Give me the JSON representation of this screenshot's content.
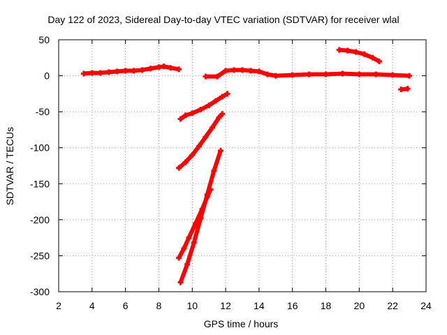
{
  "chart_data": {
    "type": "scatter",
    "title": "Day 122 of 2023, Sidereal Day-to-day VTEC variation (SDTVAR) for receiver wlal",
    "xlabel": "GPS time / hours",
    "ylabel": "SDTVAR / TECUs",
    "xlim": [
      2,
      24
    ],
    "ylim": [
      -300,
      50
    ],
    "xticks": [
      2,
      4,
      6,
      8,
      10,
      12,
      14,
      16,
      18,
      20,
      22,
      24
    ],
    "yticks": [
      -300,
      -250,
      -200,
      -150,
      -100,
      -50,
      0,
      50
    ],
    "grid": true,
    "legend": "none",
    "color": "#ff0000",
    "series": [
      {
        "x": [
          3.5,
          4.0,
          4.5,
          5.0,
          5.5,
          6.0,
          6.5,
          7.0,
          7.5,
          8.0,
          8.3,
          8.7,
          9.2
        ],
        "y": [
          3,
          4,
          4,
          5,
          6,
          7,
          7,
          8,
          10,
          12,
          13,
          11,
          9
        ]
      },
      {
        "x": [
          9.3,
          9.6,
          10.0,
          10.5,
          11.0,
          11.4,
          11.8,
          12.1
        ],
        "y": [
          -60,
          -55,
          -52,
          -47,
          -41,
          -35,
          -29,
          -25
        ]
      },
      {
        "x": [
          9.2,
          9.6,
          10.0,
          10.4,
          10.8,
          11.2,
          11.6,
          11.8
        ],
        "y": [
          -128,
          -120,
          -110,
          -98,
          -85,
          -72,
          -58,
          -53
        ]
      },
      {
        "x": [
          9.2,
          9.5,
          9.8,
          10.2,
          10.6,
          10.9,
          11.1
        ],
        "y": [
          -253,
          -240,
          -225,
          -205,
          -185,
          -168,
          -158
        ]
      },
      {
        "x": [
          9.3,
          9.7,
          10.1,
          10.5,
          10.9,
          11.3,
          11.7
        ],
        "y": [
          -287,
          -262,
          -232,
          -198,
          -165,
          -132,
          -104
        ]
      },
      {
        "x": [
          10.8,
          11.5,
          12.0,
          12.5,
          13.0,
          13.5,
          14.0,
          14.5,
          15.0,
          16.0,
          17.0,
          18.0,
          19.0,
          20.0,
          21.0,
          22.0,
          23.0
        ],
        "y": [
          -1,
          -1,
          7,
          8,
          8,
          7,
          6,
          2,
          0,
          1,
          2,
          2,
          3,
          2,
          2,
          1,
          0
        ]
      },
      {
        "x": [
          18.8,
          19.3,
          19.8,
          20.3,
          20.8,
          21.2
        ],
        "y": [
          36,
          35,
          33,
          30,
          25,
          20
        ]
      },
      {
        "x": [
          22.5,
          22.9
        ],
        "y": [
          -19,
          -18
        ]
      }
    ]
  }
}
